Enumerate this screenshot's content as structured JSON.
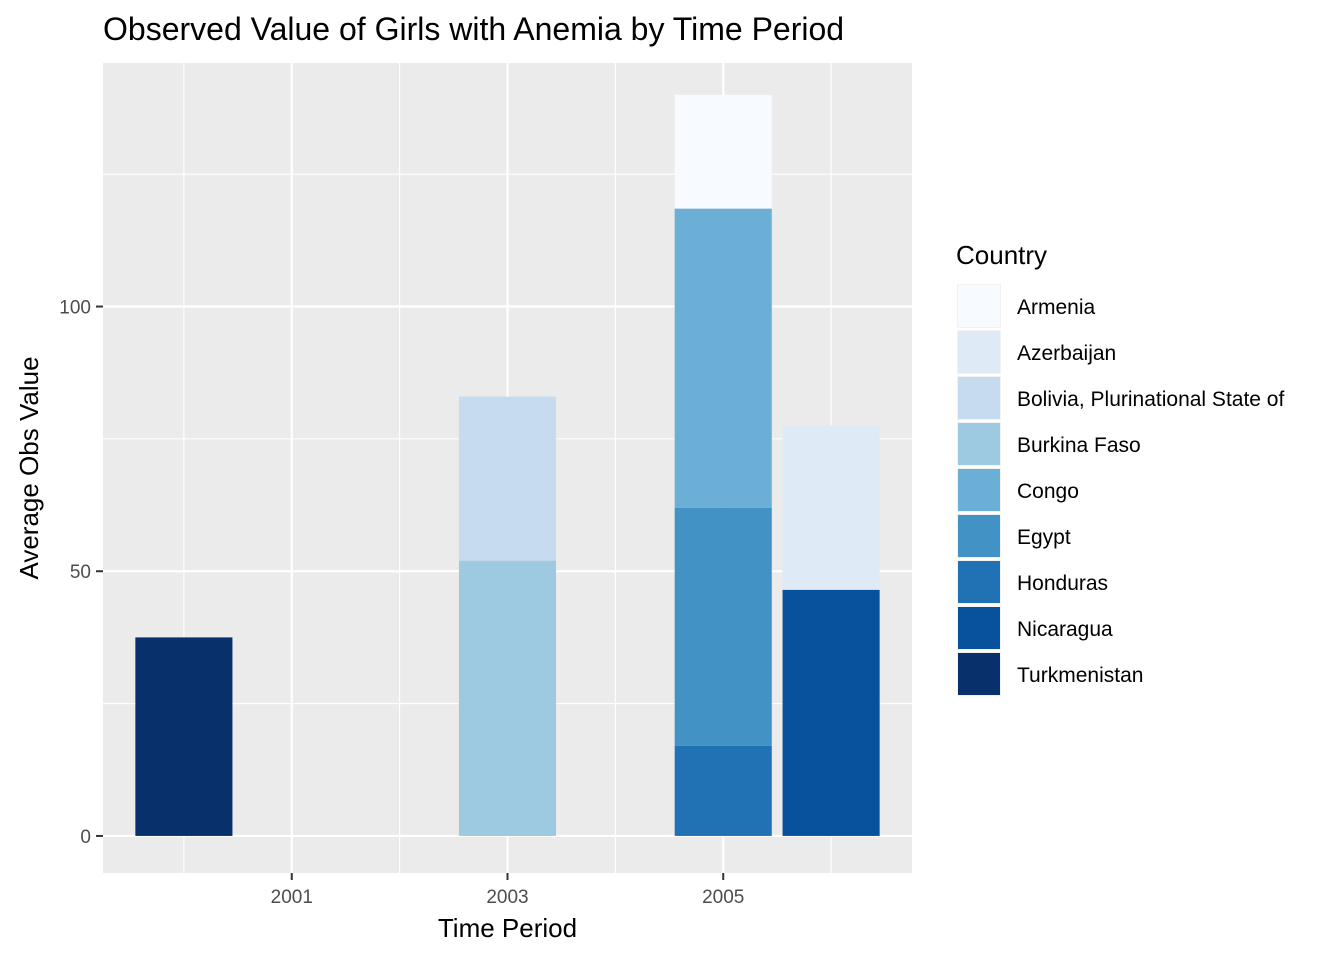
{
  "chart_data": {
    "type": "bar",
    "stacked": true,
    "title": "Observed Value of Girls with Anemia by Time Period",
    "xlabel": "Time Period",
    "ylabel": "Average Obs Value",
    "x_ticks": [
      "2001",
      "2003",
      "2005"
    ],
    "y_ticks": [
      0,
      50,
      100
    ],
    "xlim": [
      1999.25,
      2006.75
    ],
    "ylim": [
      -7,
      146
    ],
    "grid": true,
    "legend": {
      "title": "Country",
      "position": "right",
      "entries": [
        {
          "name": "Armenia",
          "color": "#f7fbff"
        },
        {
          "name": "Azerbaijan",
          "color": "#deebf7"
        },
        {
          "name": "Bolivia, Plurinational State of",
          "color": "#c6dbef"
        },
        {
          "name": "Burkina Faso",
          "color": "#9ecae1"
        },
        {
          "name": "Congo",
          "color": "#6baed6"
        },
        {
          "name": "Egypt",
          "color": "#4292c6"
        },
        {
          "name": "Honduras",
          "color": "#2171b5"
        },
        {
          "name": "Nicaragua",
          "color": "#08519c"
        },
        {
          "name": "Turkmenistan",
          "color": "#08306b"
        }
      ]
    },
    "bars": [
      {
        "x": 2000,
        "segments": [
          {
            "country": "Turkmenistan",
            "value": 37.5
          }
        ]
      },
      {
        "x": 2003,
        "segments": [
          {
            "country": "Burkina Faso",
            "value": 52
          },
          {
            "country": "Bolivia, Plurinational State of",
            "value": 31
          }
        ]
      },
      {
        "x": 2005,
        "segments": [
          {
            "country": "Honduras",
            "value": 17
          },
          {
            "country": "Egypt",
            "value": 45
          },
          {
            "country": "Congo",
            "value": 56.5
          },
          {
            "country": "Armenia",
            "value": 21.5
          }
        ]
      },
      {
        "x": 2006,
        "segments": [
          {
            "country": "Nicaragua",
            "value": 46.5
          },
          {
            "country": "Azerbaijan",
            "value": 31
          }
        ]
      }
    ],
    "bar_width": 0.9
  }
}
